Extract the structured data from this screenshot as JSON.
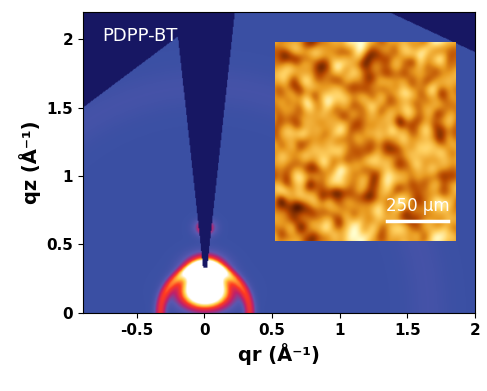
{
  "chart_data": {
    "type": "heatmap",
    "title": "PDPP-BT",
    "x_label": "qr (Å⁻¹)",
    "y_label": "qz (Å⁻¹)",
    "xlim": [
      -0.9,
      2.0
    ],
    "ylim": [
      0,
      2.2
    ],
    "xticks": [
      -0.5,
      0,
      0.5,
      1,
      1.5,
      2
    ],
    "yticks": [
      0,
      0.5,
      1,
      1.5,
      2
    ],
    "background": 0.3,
    "peaks": [
      {
        "q_r": 0,
        "q_z": 0.3,
        "sigma_r": 0.09,
        "sigma_z": 0.07,
        "intensity": 1.2
      },
      {
        "q_r": 0,
        "q_z": 0.15,
        "sigma_r": 0.12,
        "sigma_z": 0.08,
        "intensity": 1.2
      },
      {
        "q_r": 0,
        "q_z": 0.62,
        "sigma_r": 0.05,
        "sigma_z": 0.04,
        "intensity": 0.4
      }
    ],
    "rings": [
      {
        "q": 0.33,
        "width": 0.03,
        "intensity": 0.35
      },
      {
        "q": 1.65,
        "width": 0.1,
        "intensity": 0.04
      }
    ],
    "inset": {
      "type": "image",
      "scale_bar": "250 µm"
    }
  }
}
